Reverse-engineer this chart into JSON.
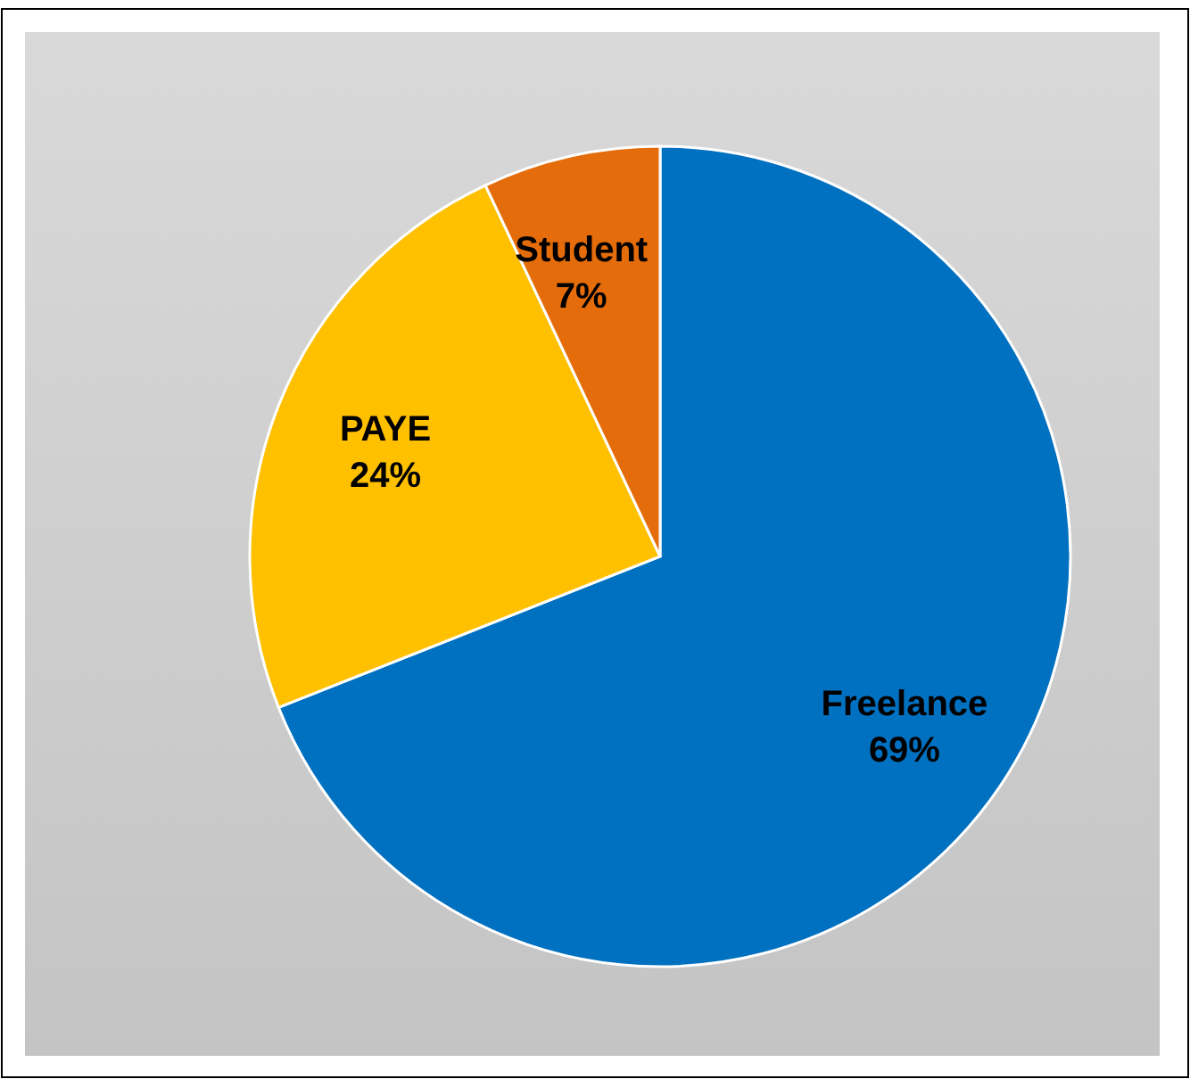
{
  "chart_data": {
    "type": "pie",
    "categories": [
      "Freelance",
      "PAYE",
      "Student"
    ],
    "values": [
      69,
      24,
      7
    ],
    "colors": [
      "#0070c0",
      "#ffc000",
      "#e46c0a"
    ],
    "value_labels": [
      "69%",
      "24%",
      "7%"
    ]
  }
}
